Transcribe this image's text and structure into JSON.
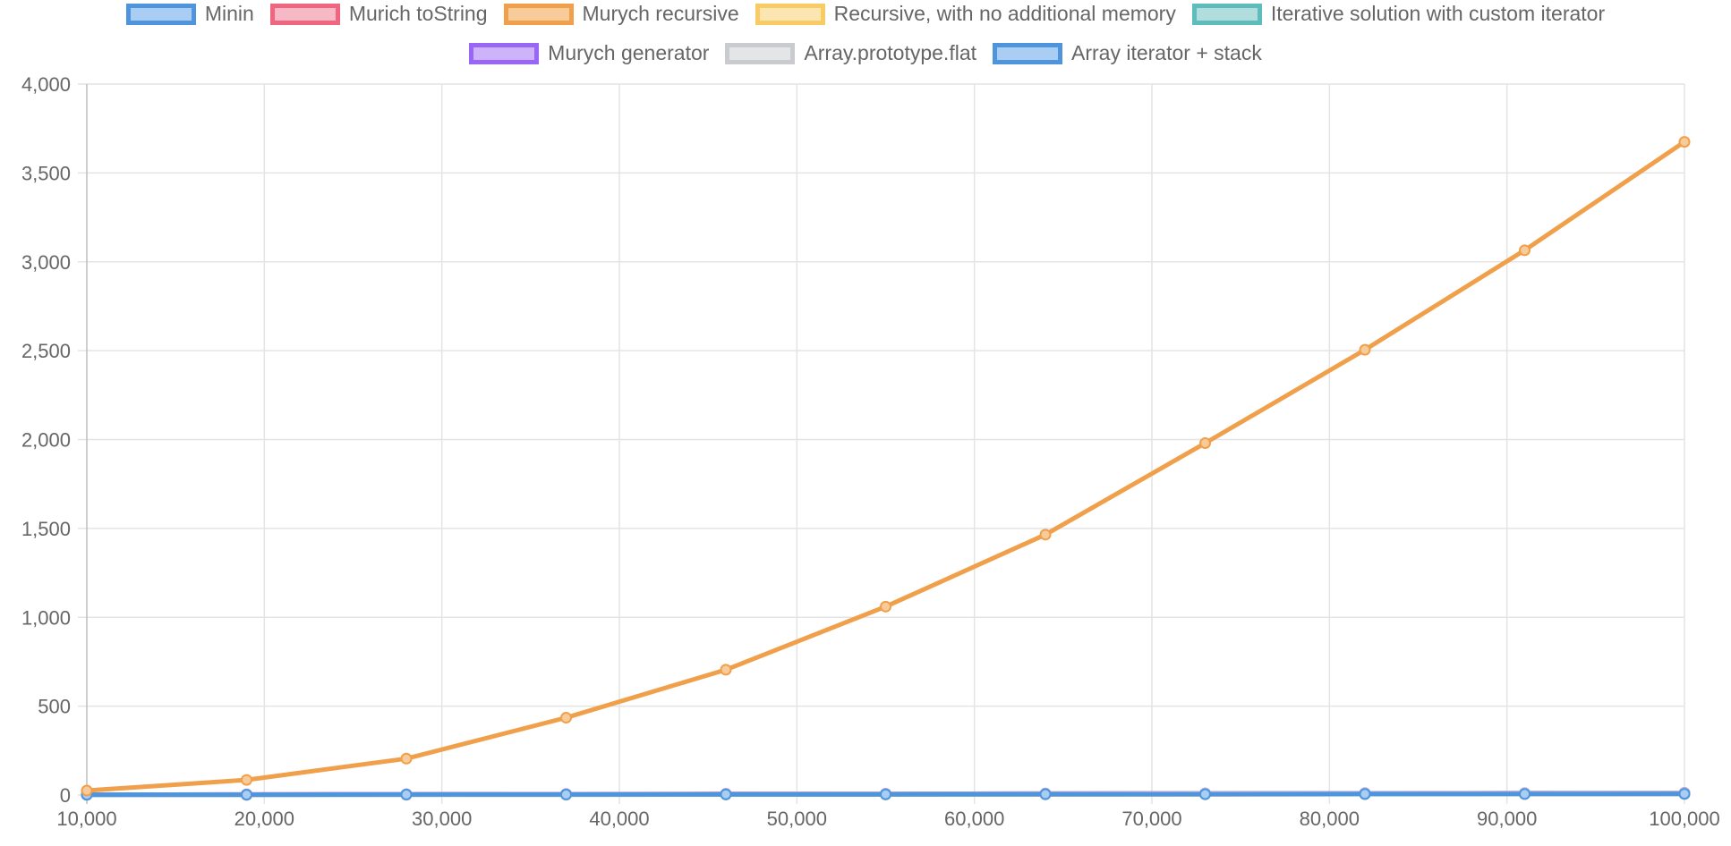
{
  "chart_data": {
    "type": "line",
    "x": [
      10000,
      19000,
      28000,
      37000,
      46000,
      55000,
      64000,
      73000,
      82000,
      91000,
      100000
    ],
    "xlim": [
      10000,
      100000
    ],
    "ylim": [
      0,
      4000
    ],
    "x_ticks": [
      10000,
      20000,
      30000,
      40000,
      50000,
      60000,
      70000,
      80000,
      90000,
      100000
    ],
    "x_tick_labels": [
      "10,000",
      "20,000",
      "30,000",
      "40,000",
      "50,000",
      "60,000",
      "70,000",
      "80,000",
      "90,000",
      "100,000"
    ],
    "y_ticks": [
      0,
      500,
      1000,
      1500,
      2000,
      2500,
      3000,
      3500,
      4000
    ],
    "y_tick_labels": [
      "0",
      "500",
      "1,000",
      "1,500",
      "2,000",
      "2,500",
      "3,000",
      "3,500",
      "4,000"
    ],
    "grid": true,
    "legend_position": "top",
    "series": [
      {
        "name": "Minin",
        "color": "#4f95dd",
        "fill": "#a9cdf3",
        "values": [
          1,
          1,
          2,
          2,
          3,
          3,
          4,
          4,
          5,
          5,
          6
        ]
      },
      {
        "name": "Murich toString",
        "color": "#f0657f",
        "fill": "#f7b9c5",
        "values": [
          2,
          3,
          4,
          5,
          6,
          7,
          8,
          9,
          10,
          11,
          12
        ]
      },
      {
        "name": "Murych recursive",
        "color": "#f0a04b",
        "fill": "#f8cb9b",
        "values": [
          25,
          85,
          205,
          435,
          705,
          1060,
          1465,
          1980,
          2505,
          3065,
          3675
        ]
      },
      {
        "name": "Recursive, with no additional memory",
        "color": "#f8cb64",
        "fill": "#fbe5b0",
        "values": [
          1,
          1,
          2,
          2,
          3,
          3,
          4,
          4,
          5,
          5,
          6
        ]
      },
      {
        "name": "Iterative solution with custom iterator",
        "color": "#5fbcbc",
        "fill": "#b1dddd",
        "values": [
          1,
          2,
          2,
          3,
          3,
          4,
          4,
          5,
          5,
          6,
          6
        ]
      },
      {
        "name": "Murych generator",
        "color": "#9966f5",
        "fill": "#ccb3fa",
        "values": [
          2,
          3,
          4,
          5,
          6,
          7,
          8,
          9,
          10,
          11,
          12
        ]
      },
      {
        "name": "Array.prototype.flat",
        "color": "#c9cbcf",
        "fill": "#e4e5e7",
        "values": [
          1,
          2,
          3,
          4,
          5,
          6,
          7,
          8,
          9,
          10,
          11
        ]
      },
      {
        "name": "Array iterator + stack",
        "color": "#4f95dd",
        "fill": "#a9cdf3",
        "values": [
          2,
          2,
          3,
          3,
          4,
          4,
          5,
          5,
          6,
          6,
          7
        ]
      }
    ]
  }
}
